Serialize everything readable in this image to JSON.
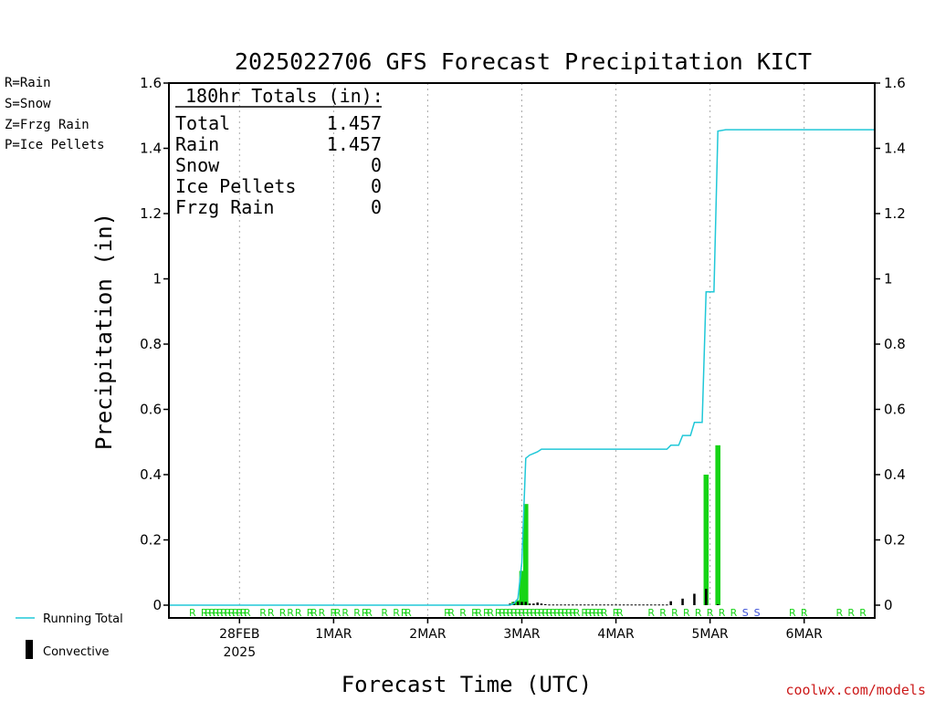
{
  "ptype_legend": [
    {
      "label": "R=Rain",
      "color": "#1ecb1e"
    },
    {
      "label": "S=Snow",
      "color": "#3a4fd8"
    },
    {
      "label": "Z=Frzg Rain",
      "color": "#f09a40"
    },
    {
      "label": "P=Ice Pellets",
      "color": "#e8309a"
    }
  ],
  "series_legend": {
    "running_total": "Running Total",
    "convective": "Convective"
  },
  "totals": {
    "header": "180hr Totals (in):",
    "rows": [
      {
        "label": "Total",
        "value": "1.457"
      },
      {
        "label": "Rain",
        "value": "1.457"
      },
      {
        "label": "Snow",
        "value": "0"
      },
      {
        "label": "Ice Pellets",
        "value": "0"
      },
      {
        "label": "Frzg Rain",
        "value": "0"
      }
    ]
  },
  "credit": "coolwx.com/models",
  "colors": {
    "rain": "#16d416",
    "snow": "#3a4fd8",
    "running_total": "#20c8d8",
    "convective": "#000000",
    "grid": "#aaaaaa",
    "credit": "#cc1a1a"
  },
  "chart_data": {
    "type": "bar",
    "title": "2025022706 GFS Forecast Precipitation KICT",
    "xlabel": "Forecast Time (UTC)",
    "ylabel": "Precipitation (in)",
    "ylim": [
      0,
      1.6
    ],
    "yticks": [
      "0",
      "0.2",
      "0.4",
      "0.6",
      "0.8",
      "1",
      "1.2",
      "1.4",
      "1.6"
    ],
    "x_unit": "forecast hour",
    "xlim": [
      0,
      180
    ],
    "xticks": [
      {
        "hour": 18,
        "label": "28FEB",
        "sublabel": "2025"
      },
      {
        "hour": 42,
        "label": "1MAR"
      },
      {
        "hour": 66,
        "label": "2MAR"
      },
      {
        "hour": 90,
        "label": "3MAR"
      },
      {
        "hour": 114,
        "label": "4MAR"
      },
      {
        "hour": 138,
        "label": "5MAR"
      },
      {
        "hour": 162,
        "label": "6MAR"
      }
    ],
    "grid": true,
    "series": [
      {
        "name": "Running Total",
        "kind": "line",
        "points": [
          [
            0,
            0
          ],
          [
            87,
            0
          ],
          [
            88,
            0.005
          ],
          [
            89,
            0.02
          ],
          [
            90,
            0.13
          ],
          [
            91,
            0.45
          ],
          [
            92,
            0.46
          ],
          [
            93,
            0.465
          ],
          [
            94,
            0.47
          ],
          [
            95,
            0.478
          ],
          [
            100,
            0.478
          ],
          [
            110,
            0.478
          ],
          [
            120,
            0.478
          ],
          [
            127,
            0.478
          ],
          [
            128,
            0.49
          ],
          [
            130,
            0.49
          ],
          [
            131,
            0.52
          ],
          [
            133,
            0.52
          ],
          [
            134,
            0.56
          ],
          [
            136,
            0.56
          ],
          [
            137,
            0.96
          ],
          [
            139,
            0.96
          ],
          [
            140,
            1.453
          ],
          [
            142,
            1.457
          ],
          [
            180,
            1.457
          ]
        ]
      },
      {
        "name": "Rain",
        "kind": "bar",
        "points": [
          [
            88,
            0.01
          ],
          [
            89,
            0.015
          ],
          [
            90,
            0.105
          ],
          [
            91,
            0.31
          ],
          [
            137,
            0.4
          ],
          [
            140,
            0.49
          ]
        ]
      },
      {
        "name": "Convective",
        "kind": "bar",
        "points": [
          [
            87,
            0.005
          ],
          [
            88,
            0.01
          ],
          [
            89,
            0.01
          ],
          [
            90,
            0.01
          ],
          [
            91,
            0.01
          ],
          [
            92,
            0.005
          ],
          [
            93,
            0.005
          ],
          [
            94,
            0.008
          ],
          [
            95,
            0.005
          ],
          [
            96,
            0.003
          ],
          [
            97,
            0.002
          ],
          [
            98,
            0.002
          ],
          [
            99,
            0.002
          ],
          [
            100,
            0.002
          ],
          [
            101,
            0.002
          ],
          [
            102,
            0.002
          ],
          [
            103,
            0.002
          ],
          [
            104,
            0.002
          ],
          [
            105,
            0.002
          ],
          [
            106,
            0.002
          ],
          [
            107,
            0.002
          ],
          [
            108,
            0.002
          ],
          [
            109,
            0.002
          ],
          [
            110,
            0.002
          ],
          [
            111,
            0.002
          ],
          [
            112,
            0.002
          ],
          [
            113,
            0.002
          ],
          [
            114,
            0.002
          ],
          [
            115,
            0.002
          ],
          [
            116,
            0.002
          ],
          [
            117,
            0.002
          ],
          [
            118,
            0.002
          ],
          [
            119,
            0.002
          ],
          [
            120,
            0.002
          ],
          [
            121,
            0.002
          ],
          [
            122,
            0.002
          ],
          [
            123,
            0.002
          ],
          [
            124,
            0.002
          ],
          [
            125,
            0.002
          ],
          [
            126,
            0.002
          ],
          [
            127,
            0.002
          ],
          [
            128,
            0.012
          ],
          [
            131,
            0.02
          ],
          [
            134,
            0.035
          ],
          [
            137,
            0.05
          ],
          [
            140,
            0.003
          ]
        ]
      }
    ],
    "precip_type_markers": [
      {
        "hour": 6,
        "type": "R"
      },
      {
        "hour": 9,
        "type": "R"
      },
      {
        "hour": 10,
        "type": "R"
      },
      {
        "hour": 11,
        "type": "R"
      },
      {
        "hour": 12,
        "type": "R"
      },
      {
        "hour": 13,
        "type": "R"
      },
      {
        "hour": 14,
        "type": "R"
      },
      {
        "hour": 15,
        "type": "R"
      },
      {
        "hour": 16,
        "type": "R"
      },
      {
        "hour": 17,
        "type": "R"
      },
      {
        "hour": 18,
        "type": "R"
      },
      {
        "hour": 19,
        "type": "R"
      },
      {
        "hour": 20,
        "type": "R"
      },
      {
        "hour": 24,
        "type": "R"
      },
      {
        "hour": 26,
        "type": "R"
      },
      {
        "hour": 29,
        "type": "R"
      },
      {
        "hour": 31,
        "type": "R"
      },
      {
        "hour": 33,
        "type": "R"
      },
      {
        "hour": 36,
        "type": "R"
      },
      {
        "hour": 37,
        "type": "R"
      },
      {
        "hour": 39,
        "type": "R"
      },
      {
        "hour": 42,
        "type": "R"
      },
      {
        "hour": 43,
        "type": "R"
      },
      {
        "hour": 45,
        "type": "R"
      },
      {
        "hour": 48,
        "type": "R"
      },
      {
        "hour": 50,
        "type": "R"
      },
      {
        "hour": 51,
        "type": "R"
      },
      {
        "hour": 55,
        "type": "R"
      },
      {
        "hour": 58,
        "type": "R"
      },
      {
        "hour": 60,
        "type": "R"
      },
      {
        "hour": 61,
        "type": "R"
      },
      {
        "hour": 71,
        "type": "R"
      },
      {
        "hour": 72,
        "type": "R"
      },
      {
        "hour": 75,
        "type": "R"
      },
      {
        "hour": 78,
        "type": "R"
      },
      {
        "hour": 79,
        "type": "R"
      },
      {
        "hour": 81,
        "type": "R"
      },
      {
        "hour": 82,
        "type": "R"
      },
      {
        "hour": 84,
        "type": "R"
      },
      {
        "hour": 85,
        "type": "R"
      },
      {
        "hour": 86,
        "type": "R"
      },
      {
        "hour": 87,
        "type": "R"
      },
      {
        "hour": 88,
        "type": "R"
      },
      {
        "hour": 89,
        "type": "R"
      },
      {
        "hour": 90,
        "type": "R"
      },
      {
        "hour": 91,
        "type": "R"
      },
      {
        "hour": 92,
        "type": "R"
      },
      {
        "hour": 93,
        "type": "R"
      },
      {
        "hour": 94,
        "type": "R"
      },
      {
        "hour": 95,
        "type": "R"
      },
      {
        "hour": 96,
        "type": "R"
      },
      {
        "hour": 97,
        "type": "R"
      },
      {
        "hour": 98,
        "type": "R"
      },
      {
        "hour": 99,
        "type": "R"
      },
      {
        "hour": 100,
        "type": "R"
      },
      {
        "hour": 101,
        "type": "R"
      },
      {
        "hour": 102,
        "type": "R"
      },
      {
        "hour": 103,
        "type": "R"
      },
      {
        "hour": 104,
        "type": "R"
      },
      {
        "hour": 106,
        "type": "R"
      },
      {
        "hour": 107,
        "type": "R"
      },
      {
        "hour": 108,
        "type": "R"
      },
      {
        "hour": 109,
        "type": "R"
      },
      {
        "hour": 110,
        "type": "R"
      },
      {
        "hour": 111,
        "type": "R"
      },
      {
        "hour": 114,
        "type": "R"
      },
      {
        "hour": 115,
        "type": "R"
      },
      {
        "hour": 123,
        "type": "R"
      },
      {
        "hour": 126,
        "type": "R"
      },
      {
        "hour": 129,
        "type": "R"
      },
      {
        "hour": 132,
        "type": "R"
      },
      {
        "hour": 135,
        "type": "R"
      },
      {
        "hour": 138,
        "type": "R"
      },
      {
        "hour": 141,
        "type": "R"
      },
      {
        "hour": 144,
        "type": "R"
      },
      {
        "hour": 147,
        "type": "S"
      },
      {
        "hour": 150,
        "type": "S"
      },
      {
        "hour": 159,
        "type": "R"
      },
      {
        "hour": 162,
        "type": "R"
      },
      {
        "hour": 171,
        "type": "R"
      },
      {
        "hour": 174,
        "type": "R"
      },
      {
        "hour": 177,
        "type": "R"
      }
    ]
  }
}
